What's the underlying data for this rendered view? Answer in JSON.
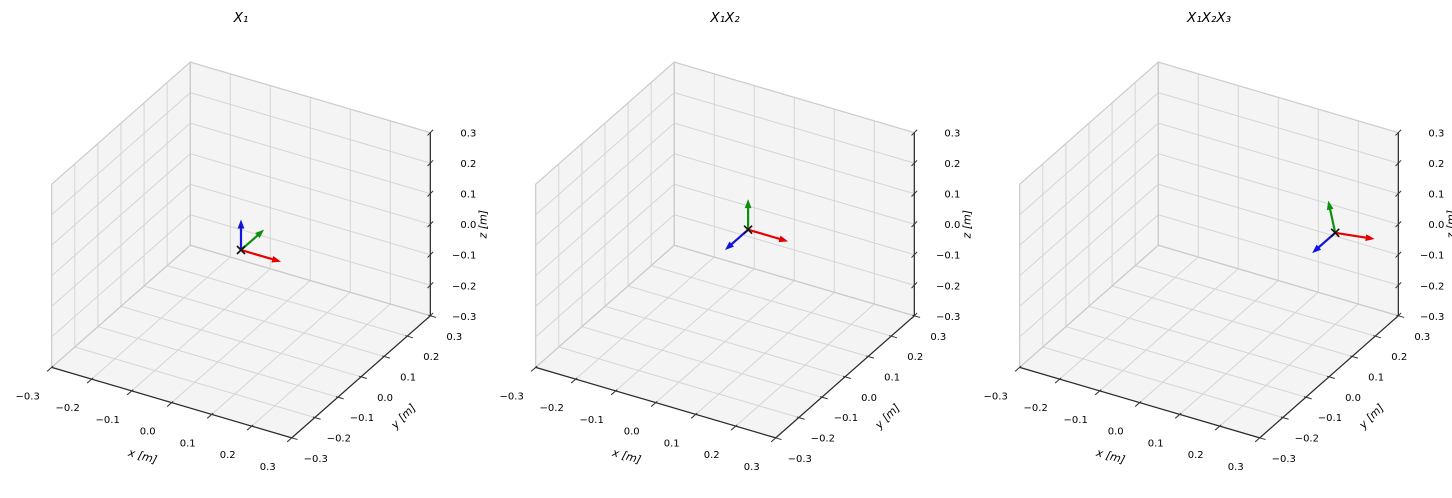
{
  "figure_title": "",
  "axes": {
    "xlabel": "x [m]",
    "ylabel": "y [m]",
    "zlabel": "z [m]",
    "limits": [
      -0.3,
      0.3
    ],
    "tick_values": [
      -0.3,
      -0.2,
      -0.1,
      0.0,
      0.1,
      0.2,
      0.3
    ],
    "tick_labels": [
      "−0.3",
      "−0.2",
      "−0.1",
      "0.0",
      "0.1",
      "0.2",
      "0.3"
    ]
  },
  "style": {
    "background": "#ffffff",
    "pane_fill": "#f4f4f4",
    "pane_edge": "#cbcbcb",
    "grid_color": "#d5d5d5",
    "spine_color": "#2a2a2a",
    "tick_color": "#333333",
    "label_color": "#000000",
    "origin_marker_color": "#111111",
    "frame_colors": {
      "x": "#e60000",
      "y": "#0d9010",
      "z": "#1212e0"
    }
  },
  "chart_data": [
    {
      "type": "scatter",
      "projection": "3d",
      "title": "X₁",
      "xlabel": "x [m]",
      "ylabel": "y [m]",
      "zlabel": "z [m]",
      "xlim": [
        -0.3,
        0.3
      ],
      "ylim": [
        -0.3,
        0.3
      ],
      "zlim": [
        -0.3,
        0.3
      ],
      "ticks": [
        -0.3,
        -0.2,
        -0.1,
        0.0,
        0.1,
        0.2,
        0.3
      ],
      "grid": true,
      "frame": {
        "position": [
          0.0,
          0.0,
          0.0
        ],
        "x_axis": [
          1,
          0,
          0
        ],
        "y_axis": [
          0,
          1,
          0
        ],
        "z_axis": [
          0,
          0,
          1
        ],
        "axis_length": 0.1
      }
    },
    {
      "type": "scatter",
      "projection": "3d",
      "title": "X₁X₂",
      "xlabel": "x [m]",
      "ylabel": "y [m]",
      "zlabel": "z [m]",
      "xlim": [
        -0.3,
        0.3
      ],
      "ylim": [
        -0.3,
        0.3
      ],
      "zlim": [
        -0.3,
        0.3
      ],
      "ticks": [
        -0.3,
        -0.2,
        -0.1,
        0.0,
        0.1,
        0.2,
        0.3
      ],
      "grid": true,
      "frame": {
        "position": [
          0.0,
          0.1,
          0.0
        ],
        "x_axis": [
          1,
          0,
          0
        ],
        "y_axis": [
          0,
          0,
          1
        ],
        "z_axis": [
          0,
          -1,
          0
        ],
        "axis_length": 0.1
      }
    },
    {
      "type": "scatter",
      "projection": "3d",
      "title": "X₁X₂X₃",
      "xlabel": "x [m]",
      "ylabel": "y [m]",
      "zlabel": "z [m]",
      "xlim": [
        -0.3,
        0.3
      ],
      "ylim": [
        -0.3,
        0.3
      ],
      "zlim": [
        -0.3,
        0.3
      ],
      "ticks": [
        -0.3,
        -0.2,
        -0.1,
        0.0,
        0.1,
        0.2,
        0.3
      ],
      "grid": true,
      "frame": {
        "position": [
          0.2,
          0.2,
          0.0
        ],
        "x_axis": [
          0.985,
          0,
          0.174
        ],
        "y_axis": [
          -0.174,
          0,
          0.985
        ],
        "z_axis": [
          0,
          -1,
          0
        ],
        "axis_length": 0.1
      }
    }
  ]
}
